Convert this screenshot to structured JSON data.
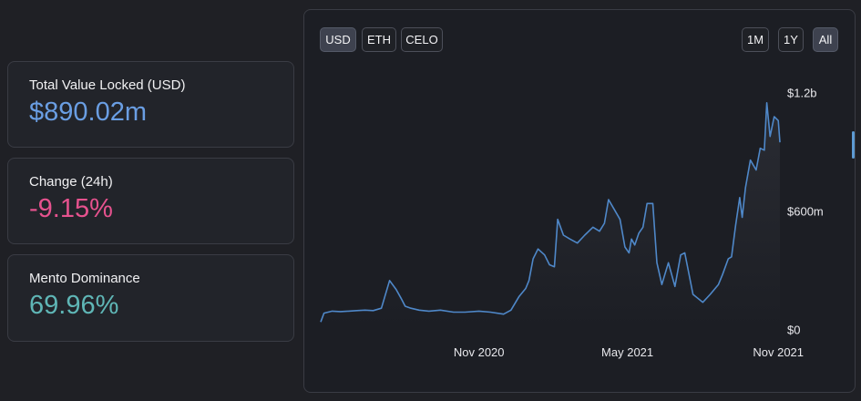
{
  "stats": {
    "tvl": {
      "label": "Total Value Locked (USD)",
      "value": "$890.02m",
      "color": "#6a9ee3"
    },
    "change": {
      "label": "Change (24h)",
      "value": "-9.15%",
      "color": "#e6528e"
    },
    "dominance": {
      "label": "Mento Dominance",
      "value": "69.96%",
      "color": "#5fb6b6"
    }
  },
  "currency_buttons": [
    {
      "label": "USD",
      "active": true
    },
    {
      "label": "ETH",
      "active": false
    },
    {
      "label": "CELO",
      "active": false
    }
  ],
  "range_buttons": [
    {
      "label": "1M",
      "active": false
    },
    {
      "label": "1Y",
      "active": false
    },
    {
      "label": "All",
      "active": true
    }
  ],
  "chart_data": {
    "type": "line",
    "line_color": "#4f88c9",
    "x_ticks": [
      {
        "label": "Nov 2020",
        "date": "2020-11-01"
      },
      {
        "label": "May 2021",
        "date": "2021-05-01"
      },
      {
        "label": "Nov 2021",
        "date": "2021-11-01"
      }
    ],
    "y_ticks": [
      {
        "label": "$1.2b",
        "value": 1200
      },
      {
        "label": "$600m",
        "value": 600
      },
      {
        "label": "$0",
        "value": 0
      }
    ],
    "ylim": [
      0,
      1200
    ],
    "y_unit": "$m",
    "series": [
      {
        "x": [
          "2020-04-22",
          "2020-04-26",
          "2020-05-06",
          "2020-05-16",
          "2020-05-26",
          "2020-06-05",
          "2020-06-15",
          "2020-06-25",
          "2020-07-05",
          "2020-07-15",
          "2020-07-23",
          "2020-07-29",
          "2020-08-03",
          "2020-08-10",
          "2020-08-20",
          "2020-09-01",
          "2020-09-15",
          "2020-10-01",
          "2020-10-15",
          "2020-11-01",
          "2020-11-15",
          "2020-12-01",
          "2020-12-10",
          "2020-12-20",
          "2020-12-28",
          "2021-01-01",
          "2021-01-06",
          "2021-01-12",
          "2021-01-20",
          "2021-01-26",
          "2021-02-01",
          "2021-02-05",
          "2021-02-12",
          "2021-02-20",
          "2021-03-01",
          "2021-03-10",
          "2021-03-20",
          "2021-03-28",
          "2021-04-03",
          "2021-04-08",
          "2021-04-15",
          "2021-04-22",
          "2021-04-28",
          "2021-05-03",
          "2021-05-06",
          "2021-05-10",
          "2021-05-15",
          "2021-05-20",
          "2021-05-25",
          "2021-06-01",
          "2021-06-06",
          "2021-06-12",
          "2021-06-20",
          "2021-06-28",
          "2021-07-05",
          "2021-07-10",
          "2021-07-20",
          "2021-08-01",
          "2021-08-10",
          "2021-08-20",
          "2021-08-25",
          "2021-09-01",
          "2021-09-05",
          "2021-09-10",
          "2021-09-15",
          "2021-09-18",
          "2021-09-22",
          "2021-09-28",
          "2021-10-05",
          "2021-10-10",
          "2021-10-15",
          "2021-10-18",
          "2021-10-22",
          "2021-10-27",
          "2021-11-01",
          "2021-11-03"
        ],
        "values": [
          40,
          85,
          95,
          93,
          95,
          98,
          100,
          98,
          110,
          250,
          205,
          160,
          120,
          110,
          100,
          95,
          100,
          90,
          90,
          95,
          90,
          80,
          100,
          170,
          210,
          250,
          360,
          410,
          380,
          330,
          320,
          560,
          480,
          460,
          440,
          480,
          520,
          500,
          540,
          660,
          610,
          560,
          420,
          390,
          460,
          430,
          490,
          520,
          640,
          640,
          340,
          230,
          340,
          220,
          380,
          390,
          180,
          140,
          180,
          230,
          280,
          360,
          370,
          530,
          670,
          570,
          720,
          860,
          810,
          920,
          910,
          1150,
          980,
          1080,
          1060,
          950
        ]
      }
    ]
  }
}
